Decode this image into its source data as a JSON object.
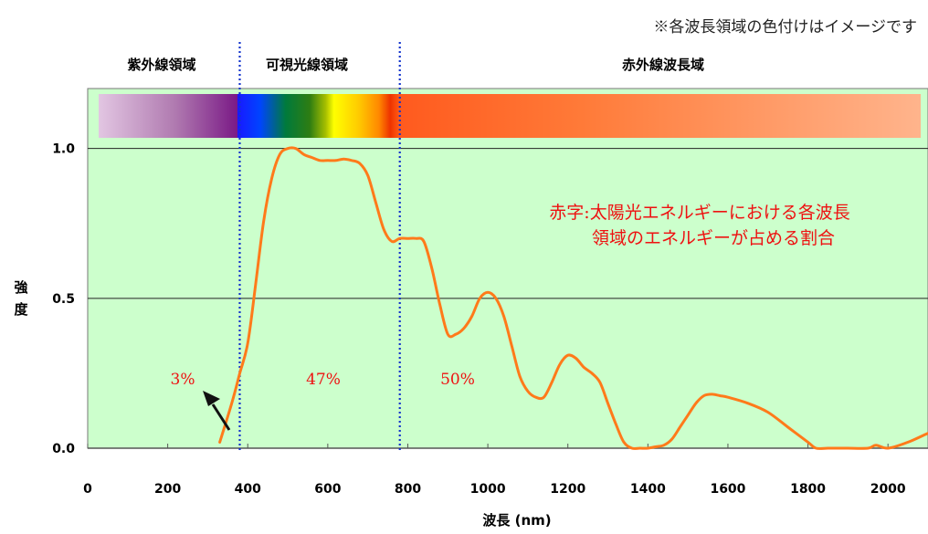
{
  "note": "※各波長領域の色付けはイメージです",
  "regions": [
    {
      "label": "紫外線領域",
      "from": 0,
      "to": 380,
      "percent": "3%"
    },
    {
      "label": "可視光線領域",
      "from": 380,
      "to": 780,
      "percent": "47%"
    },
    {
      "label": "赤外線波長域",
      "from": 780,
      "to": 2100,
      "percent": "50%"
    }
  ],
  "annotation": {
    "line1": "赤字:太陽光エネルギーにおける各波長",
    "line2": "領域のエネルギーが占める割合"
  },
  "colors": {
    "plot_bg": "#ccffcc",
    "curve": "#ff7a1a",
    "divider": "#1133cc",
    "percent_text": "#ee1111"
  },
  "chart_data": {
    "type": "line",
    "xlabel": "波長 (nm)",
    "ylabel": "強度",
    "xlim": [
      0,
      2100
    ],
    "ylim": [
      0,
      1.2
    ],
    "x_ticks": [
      0,
      200,
      400,
      600,
      800,
      1000,
      1200,
      1400,
      1600,
      1800,
      2000
    ],
    "y_ticks": [
      {
        "value": 0.0,
        "label": "0.0"
      },
      {
        "value": 0.5,
        "label": "0.5"
      },
      {
        "value": 1.0,
        "label": "1.0"
      }
    ],
    "grid": "horizontal",
    "dividers": [
      380,
      780
    ],
    "series": [
      {
        "x": [
          330,
          360,
          380,
          400,
          420,
          440,
          460,
          480,
          500,
          520,
          540,
          560,
          580,
          600,
          620,
          640,
          660,
          680,
          700,
          720,
          740,
          760,
          780,
          800,
          820,
          840,
          860,
          880,
          900,
          920,
          940,
          960,
          980,
          1000,
          1020,
          1040,
          1060,
          1080,
          1100,
          1120,
          1140,
          1160,
          1180,
          1200,
          1220,
          1240,
          1260,
          1280,
          1300,
          1320,
          1340,
          1360,
          1380,
          1400,
          1420,
          1440,
          1460,
          1480,
          1500,
          1520,
          1540,
          1560,
          1580,
          1600,
          1650,
          1700,
          1750,
          1800,
          1820,
          1850,
          1880,
          1900,
          1950,
          1970,
          2000,
          2050,
          2100
        ],
        "y": [
          0.02,
          0.15,
          0.25,
          0.35,
          0.55,
          0.76,
          0.9,
          0.98,
          1.0,
          1.0,
          0.98,
          0.97,
          0.96,
          0.96,
          0.96,
          0.965,
          0.96,
          0.95,
          0.91,
          0.82,
          0.73,
          0.69,
          0.7,
          0.7,
          0.7,
          0.69,
          0.6,
          0.48,
          0.38,
          0.38,
          0.4,
          0.44,
          0.5,
          0.52,
          0.5,
          0.44,
          0.34,
          0.24,
          0.19,
          0.17,
          0.17,
          0.22,
          0.28,
          0.31,
          0.3,
          0.27,
          0.25,
          0.22,
          0.15,
          0.08,
          0.02,
          0.0,
          0.0,
          0.0,
          0.005,
          0.01,
          0.03,
          0.07,
          0.11,
          0.15,
          0.175,
          0.18,
          0.175,
          0.17,
          0.15,
          0.12,
          0.07,
          0.02,
          0.0,
          0.0,
          0.0,
          0.0,
          0.0,
          0.01,
          0.0,
          0.02,
          0.05
        ]
      }
    ]
  }
}
